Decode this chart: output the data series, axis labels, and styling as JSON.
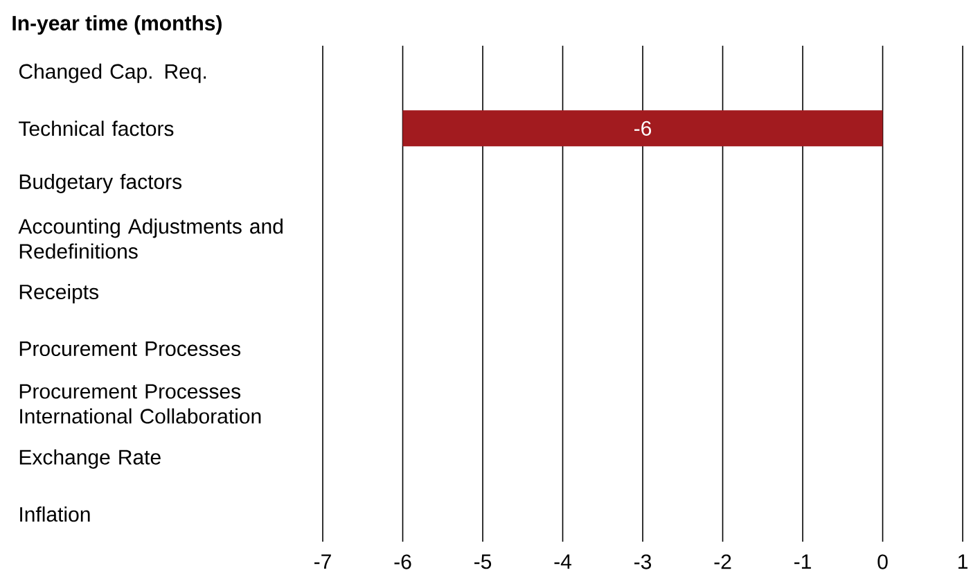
{
  "chart_data": {
    "type": "bar",
    "orientation": "horizontal",
    "title": "In-year time (months)",
    "categories": [
      "Changed Cap. Req.",
      "Technical factors",
      "Budgetary factors",
      "Accounting Adjustments and Redefinitions",
      "Receipts",
      "Procurement Processes",
      "Procurement Processes International Collaboration",
      "Exchange Rate",
      "Inflation"
    ],
    "values": [
      null,
      -6,
      null,
      null,
      null,
      null,
      null,
      null,
      null
    ],
    "value_labels": [
      null,
      "-6",
      null,
      null,
      null,
      null,
      null,
      null,
      null
    ],
    "color": "#a21b1f",
    "xlim": [
      -7,
      1
    ],
    "xticks": [
      -7,
      -6,
      -5,
      -4,
      -3,
      -2,
      -1,
      0,
      1
    ],
    "grid": "x"
  }
}
